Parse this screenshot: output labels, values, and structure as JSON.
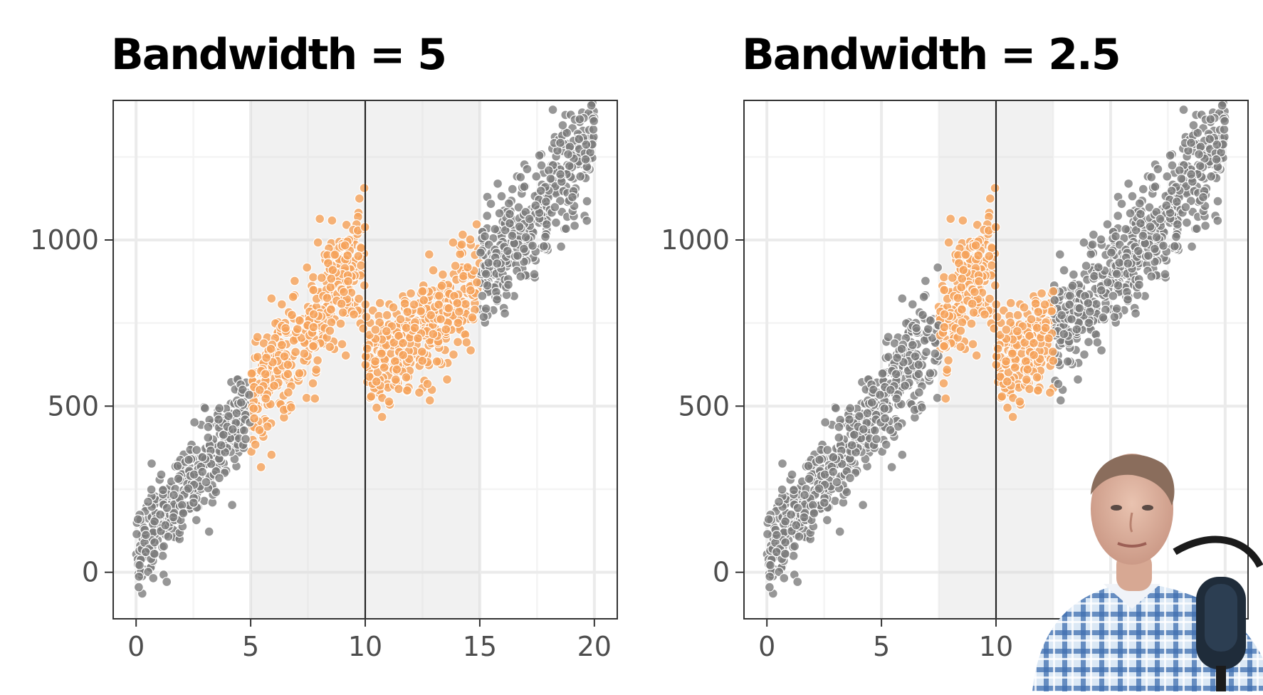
{
  "chart_data": [
    {
      "type": "scatter",
      "title": "Bandwidth = 5",
      "xlabel": "",
      "ylabel": "",
      "xlim": [
        -1,
        21
      ],
      "ylim": [
        -140,
        1420
      ],
      "x_ticks": [
        "0",
        "5",
        "10",
        "15",
        "20"
      ],
      "y_ticks": [
        "0",
        "500",
        "1000"
      ],
      "cutoff": 10,
      "bandwidth": 5,
      "window": [
        5,
        15
      ],
      "grid": true,
      "highlight_color": "#f5a25a",
      "base_color": "#7a7a7a",
      "series": [
        {
          "segment": [
            0,
            10
          ],
          "model": "y = 60 + 90*x",
          "jitter_sd": 70,
          "points_per_unit": 80
        },
        {
          "segment": [
            10,
            20
          ],
          "model": "y = 640 + 25*(x-10) + 4.5*(x-10)^2",
          "jitter_sd": 75,
          "points_per_unit": 80
        }
      ]
    },
    {
      "type": "scatter",
      "title": "Bandwidth = 2.5",
      "xlabel": "",
      "ylabel": "",
      "xlim": [
        -1,
        21
      ],
      "ylim": [
        -140,
        1420
      ],
      "x_ticks": [
        "0",
        "5",
        "10"
      ],
      "y_ticks": [
        "0",
        "500",
        "1000"
      ],
      "cutoff": 10,
      "bandwidth": 2.5,
      "window": [
        7.5,
        12.5
      ],
      "grid": true,
      "highlight_color": "#f5a25a",
      "base_color": "#7a7a7a",
      "series": [
        {
          "segment": [
            0,
            10
          ],
          "model": "y = 60 + 90*x",
          "jitter_sd": 70,
          "points_per_unit": 80
        },
        {
          "segment": [
            10,
            20
          ],
          "model": "y = 640 + 25*(x-10) + 4.5*(x-10)^2",
          "jitter_sd": 75,
          "points_per_unit": 80
        }
      ]
    }
  ]
}
